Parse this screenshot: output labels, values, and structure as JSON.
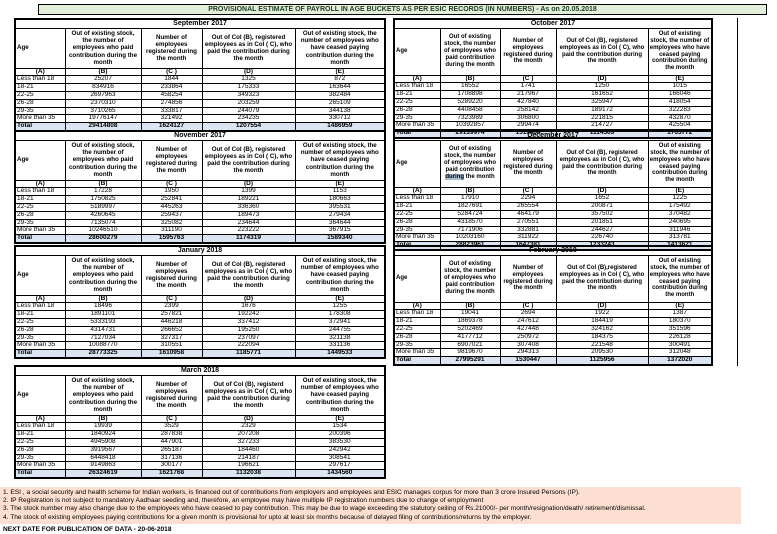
{
  "title": "PROVISIONAL ESTIMATE OF PAYROLL IN AGE BUCKETS AS PER ESIC RECORDS (IN NUMBERS) - As on 20.05.2018",
  "colors": {
    "title_bg": "#e2efda",
    "total_row_bg": "#dbe5f1",
    "notes_bg": "#fcdfd0",
    "highlight_bg": "#a9bdd3"
  },
  "tables": [
    {
      "month": "September 2017",
      "headers": {
        "age": "Age",
        "b": "Out of existing stock, the number of employees who paid contribution during the month",
        "c": "Number of employees registered during the month",
        "d": "Out of Col (B), registered employees as in Col ( C), who paid the contribution during the month",
        "e": "Out of existing stock, the number of  employees  who have ceased paying contribution during the month"
      },
      "letters": [
        "(A)",
        "(B)",
        "(C )",
        "(D)",
        "(E)"
      ],
      "rows": [
        {
          "age": "Less than 18",
          "b": "25207",
          "c": "1844",
          "d": "1325",
          "e": "872"
        },
        {
          "age": "18-21",
          "b": "834916",
          "c": "233864",
          "d": "175333",
          "e": "163644"
        },
        {
          "age": "22-25",
          "b": "2697963",
          "c": "458254",
          "d": "349323",
          "e": "382484"
        },
        {
          "age": "26-28",
          "b": "2370310",
          "c": "274856",
          "d": "203259",
          "e": "265109"
        },
        {
          "age": "29-35",
          "b": "3710265",
          "c": "333817",
          "d": "244079",
          "e": "344138"
        },
        {
          "age": "More than 35",
          "b": "19776147",
          "c": "321492",
          "d": "234235",
          "e": "330712"
        }
      ],
      "total": {
        "label": "Total",
        "b": "29414808",
        "c": "1624127",
        "d": "1207554",
        "e": "1486959"
      }
    },
    {
      "month": "October 2017",
      "headers": {
        "age": "Age",
        "b": "Out of existing stock, the number of employees who paid contribution during the month",
        "c": "Number of employees registered during the month",
        "d": "Out of Col (B),  registered employees as in Col ( C), who paid the contribution during the month",
        "e": "Out of existing stock, the number of employees  who have ceased paying contribution during the month"
      },
      "letters": [
        "(A)",
        "(B)",
        "(C )",
        "(D)",
        "(E)"
      ],
      "rows": [
        {
          "age": "Less than 18",
          "b": "16552",
          "c": "1741",
          "d": "1250",
          "e": "1015"
        },
        {
          "age": "18-21",
          "b": "1708898",
          "c": "217967",
          "d": "161652",
          "e": "166046"
        },
        {
          "age": "22-25",
          "b": "5289220",
          "c": "427840",
          "d": "325947",
          "e": "418054"
        },
        {
          "age": "26-28",
          "b": "4408458",
          "c": "258142",
          "d": "189172",
          "e": "322283"
        },
        {
          "age": "29-35",
          "b": "7323989",
          "c": "306800",
          "d": "221815",
          "e": "432870"
        },
        {
          "age": "More than 35",
          "b": "10392857",
          "c": "299474",
          "d": "214727",
          "e": "425504"
        }
      ],
      "total": {
        "label": "Total",
        "b": "29139974",
        "c": "1511964",
        "d": "1114563",
        "e": "1765772"
      }
    },
    {
      "month": "November 2017",
      "headers": {
        "age": "Age",
        "b": "Out of existing stock, the number of employees who paid contribution during the month",
        "c": "Number of employees registered during the month",
        "d": "Out of Col (B), registered employees as in Col ( C), who paid the contribution during the month",
        "e": "Out of existing stock, the number of  employees  who have ceased paying contribution during the month"
      },
      "letters": [
        "(A)",
        "(B)",
        "(C )",
        "(D)",
        "(E)"
      ],
      "rows": [
        {
          "age": "Less than 18",
          "b": "17228",
          "c": "1950",
          "d": "1399",
          "e": "1153"
        },
        {
          "age": "18-21",
          "b": "1750825",
          "c": "252841",
          "d": "189221",
          "e": "180663"
        },
        {
          "age": "22-25",
          "b": "5189997",
          "c": "445263",
          "d": "336360",
          "e": "395531"
        },
        {
          "age": "26-28",
          "b": "4260645",
          "c": "259437",
          "d": "189473",
          "e": "279434"
        },
        {
          "age": "29-35",
          "b": "7135074",
          "c": "325082",
          "d": "234644",
          "e": "364644"
        },
        {
          "age": "More than 35",
          "b": "10246510",
          "c": "311190",
          "d": "223222",
          "e": "367915"
        }
      ],
      "total": {
        "label": "Total",
        "b": "28600279",
        "c": "1595763",
        "d": "1174319",
        "e": "1589340"
      }
    },
    {
      "month": "December 2017",
      "headers": {
        "age": "Age",
        "b": "Out of existing stock, the number of employees who paid contribution during the month",
        "b_highlight": "during",
        "c": "Number of employees registered during the month",
        "d": "Out of Col (B), registered employees as in Col ( C), who paid the contribution during the month",
        "e": "Out of existing stock, the number of employees  who have ceased paying contribution during the month"
      },
      "letters": [
        "(A)",
        "(B)",
        "(C )",
        "(D)",
        "(E)"
      ],
      "rows": [
        {
          "age": "Less than 18",
          "b": "17910",
          "c": "2294",
          "d": "1652",
          "e": "1225"
        },
        {
          "age": "18-21",
          "b": "1827691",
          "c": "265554",
          "d": "200871",
          "e": "175492"
        },
        {
          "age": "22-25",
          "b": "5284724",
          "c": "464179",
          "d": "357502",
          "e": "370482"
        },
        {
          "age": "26-28",
          "b": "4318570",
          "c": "270551",
          "d": "201851",
          "e": "240695"
        },
        {
          "age": "29-35",
          "b": "7171906",
          "c": "332881",
          "d": "244627",
          "e": "311946"
        },
        {
          "age": "More than 35",
          "b": "10203160",
          "c": "311922",
          "d": "226740",
          "e": "313781"
        }
      ],
      "total": {
        "label": "Total",
        "b": "28823961",
        "c": "1647381",
        "d": "1233243",
        "e": "1413621"
      }
    },
    {
      "month": "January 2018",
      "headers": {
        "age": "Age",
        "b": "Out of existing stock, the number of employees who paid contribution during the month",
        "c": "Number of employees registered during the month",
        "d": "Out of Col (B), registered employees as in Col ( C), who paid the contribution during the month",
        "e": "Out of existing stock, the number of  employees  who have ceased paying contribution during the month"
      },
      "letters": [
        "(A)",
        "(B)",
        "(C )",
        "(D)",
        "(E)"
      ],
      "rows": [
        {
          "age": "Less than 18",
          "b": "18496",
          "c": "2399",
          "d": "1676",
          "e": "1255"
        },
        {
          "age": "18-21",
          "b": "1891101",
          "c": "257821",
          "d": "192242",
          "e": "178308"
        },
        {
          "age": "22-25",
          "b": "5333193",
          "c": "446218",
          "d": "337412",
          "e": "372941"
        },
        {
          "age": "26-28",
          "b": "4314731",
          "c": "266652",
          "d": "195250",
          "e": "244755"
        },
        {
          "age": "29-35",
          "b": "7127034",
          "c": "327317",
          "d": "237097",
          "e": "321138"
        },
        {
          "age": "More than 35",
          "b": "10088770",
          "c": "310551",
          "d": "222094",
          "e": "331136"
        }
      ],
      "total": {
        "label": "Total",
        "b": "28773325",
        "c": "1610958",
        "d": "1185771",
        "e": "1449533"
      }
    },
    {
      "month": "February 2018",
      "headers": {
        "age": "Age",
        "b": "Out of existing stock, the number of employees who paid contribution during the month",
        "c": "Number of employees registered during the month",
        "d": "Out of Col (B),registered employees as in Col ( C), who paid the contribution during the month",
        "e": "Out of existing stock, the number of employees  who have ceased paying contribution during the month"
      },
      "letters": [
        "(A)",
        "(B)",
        "(C )",
        "(D)",
        "(E)"
      ],
      "rows": [
        {
          "age": "Less than 18",
          "b": "19041",
          "c": "2694",
          "d": "1922",
          "e": "1387"
        },
        {
          "age": "18-21",
          "b": "1869378",
          "c": "247612",
          "d": "184419",
          "e": "180370"
        },
        {
          "age": "22-25",
          "b": "5202469",
          "c": "427448",
          "d": "324162",
          "e": "351596"
        },
        {
          "age": "26-28",
          "b": "4177712",
          "c": "250972",
          "d": "184375",
          "e": "226128"
        },
        {
          "age": "29-35",
          "b": "6907021",
          "c": "307408",
          "d": "221548",
          "e": "300491"
        },
        {
          "age": "More than 35",
          "b": "9819670",
          "c": "294313",
          "d": "209530",
          "e": "312048"
        }
      ],
      "total": {
        "label": "Total",
        "b": "27995291",
        "c": "1530447",
        "d": "1125956",
        "e": "1372020"
      }
    },
    {
      "month": "March 2018",
      "headers": {
        "age": "Age",
        "b": "Out of existing stock, the number of employees who paid contribution during the month",
        "c": "Number of employees registered during the month",
        "d": "Out of Col (B), registerd employees as in Col ( C), who paid the contribution during the month",
        "e": "Out of existing stock, the number of  employees  who have ceased paying contribution during the month"
      },
      "letters": [
        "(A)",
        "(B)",
        "(C )",
        "(D)",
        "(E)"
      ],
      "rows": [
        {
          "age": "Less than 18",
          "b": "19939",
          "c": "3529",
          "d": "2329",
          "e": "1534"
        },
        {
          "age": "18-21",
          "b": "1840924",
          "c": "287838",
          "d": "207208",
          "e": "200396"
        },
        {
          "age": "22-25",
          "b": "4945908",
          "c": "447901",
          "d": "327233",
          "e": "383530"
        },
        {
          "age": "26-28",
          "b": "3919567",
          "c": "265187",
          "d": "184460",
          "e": "242942"
        },
        {
          "age": "29-35",
          "b": "6448418",
          "c": "317136",
          "d": "214187",
          "e": "308541"
        },
        {
          "age": "More than 35",
          "b": "9149863",
          "c": "300177",
          "d": "196621",
          "e": "297617"
        }
      ],
      "total": {
        "label": "Total",
        "b": "26324619",
        "c": "1621768",
        "d": "1132038",
        "e": "1434560"
      }
    }
  ],
  "footnotes": {
    "notes": [
      "1. ESI , a social security and health scheme for Indian workers, is financed out of contributions from employers and employees and ESIC manages corpus for more than 3 crore Insured Persons (IP).",
      "2. IP Registration is not subject to mandatory Aadhaar seeding and, therefore, an employee may have multiple IP registration numbers due to change of employment",
      "3. The stock number may also change due to the employees who have ceased to pay contribution. This may  be due to wage exceeding the statutory ceiling of  Rs.21000/- per month/resignation/death/ retirement/dismissal.",
      "4. The stock of existing employees paying contributions for a given month is provisional for upto at least six months because of delayed filing of contributions/returns by the employer."
    ],
    "next_date": "NEXT DATE FOR PUBLICATION OF DATA - 20-06-2018"
  }
}
